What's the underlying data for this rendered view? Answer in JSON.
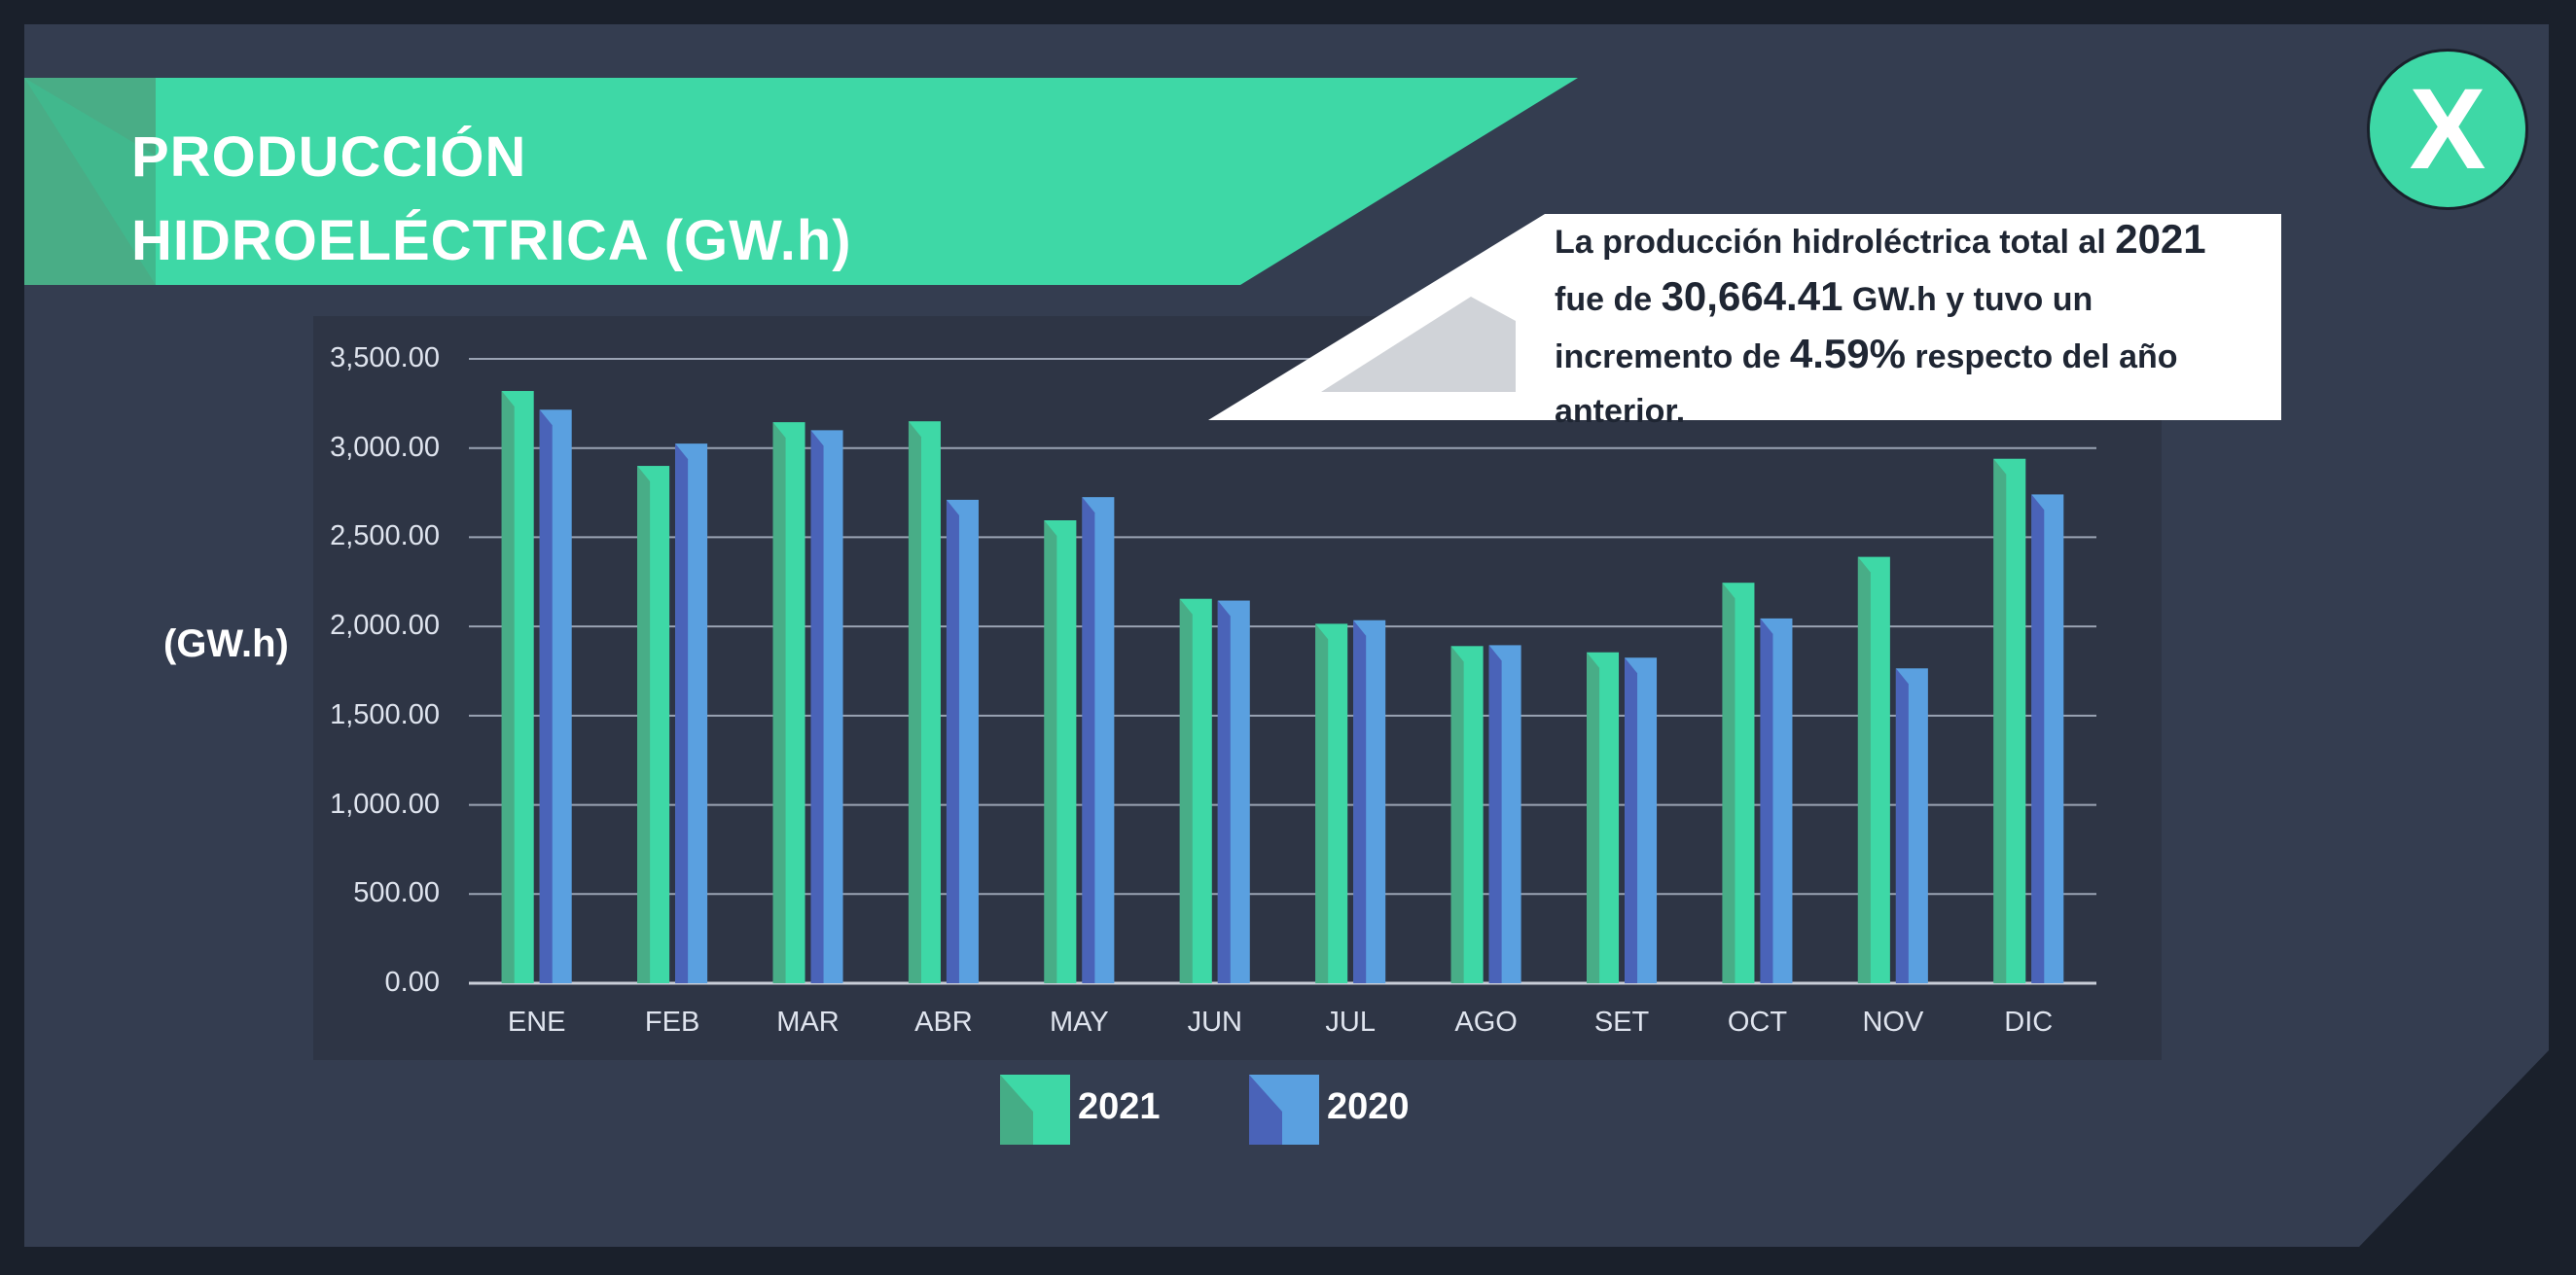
{
  "title": {
    "line1": "PRODUCCIÓN",
    "line2": "HIDROELÉCTRICA (GW.h)"
  },
  "close_button": {
    "label": "X",
    "icon": "close-icon"
  },
  "callout": {
    "part1": "La producción hidroléctrica total al ",
    "year": "2021",
    "part2": " fue de ",
    "total": "30,664.41",
    "part3": " GW.h y tuvo un incremento de ",
    "increase": "4.59%",
    "part4": " respecto del año anterior."
  },
  "colors": {
    "background": "#343d50",
    "accent": "#3ed8a6",
    "series_2021": "#3ed8a6",
    "series_2020": "#5aa0e0"
  },
  "chart_data": {
    "type": "bar",
    "categories": [
      "ENE",
      "FEB",
      "MAR",
      "ABR",
      "MAY",
      "JUN",
      "JUL",
      "AGO",
      "SET",
      "OCT",
      "NOV",
      "DIC"
    ],
    "series": [
      {
        "name": "2021",
        "values": [
          3320,
          2900,
          3145,
          3150,
          2595,
          2155,
          2015,
          1890,
          1855,
          2245,
          2390,
          2940
        ]
      },
      {
        "name": "2020",
        "values": [
          3215,
          3025,
          3100,
          2710,
          2725,
          2145,
          2035,
          1895,
          1825,
          2045,
          1765,
          2740
        ]
      }
    ],
    "ylabel": "(GW.h)",
    "yticks": [
      "0.00",
      "500.00",
      "1,000.00",
      "1,500.00",
      "2,000.00",
      "2,500.00",
      "3,000.00",
      "3,500.00"
    ],
    "ylim": [
      0,
      3500
    ],
    "grid": true,
    "legend": "bottom"
  }
}
